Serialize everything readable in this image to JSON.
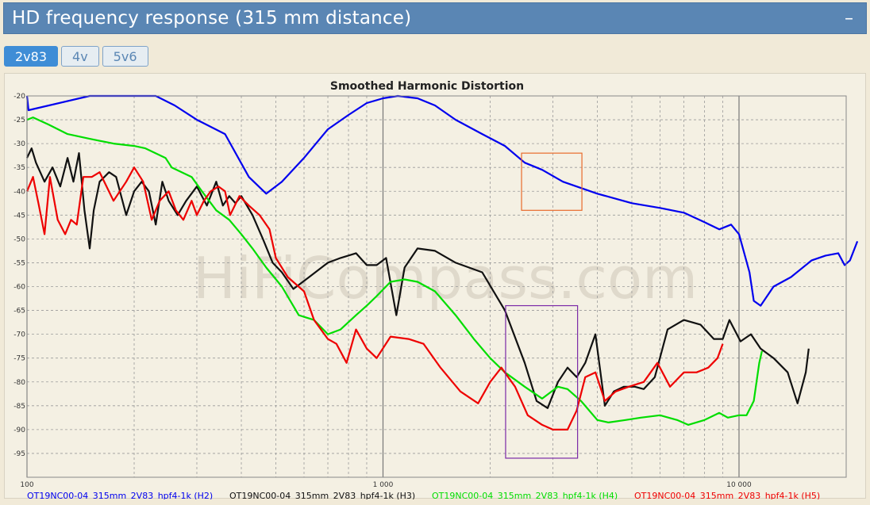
{
  "header": {
    "title": "HD frequency response (315 mm distance)",
    "collapse_symbol": "–"
  },
  "tabs": [
    {
      "label": "2v83",
      "active": true
    },
    {
      "label": "4v",
      "active": false
    },
    {
      "label": "5v6",
      "active": false
    }
  ],
  "chart_data": {
    "type": "line",
    "title": "Smoothed Harmonic Distortion",
    "watermark": "HiFiCompass.com",
    "x_scale": "log",
    "xlim": [
      100,
      20000
    ],
    "ylim": [
      -100,
      -20
    ],
    "x_ticks": [
      {
        "value": 100,
        "label": "100"
      },
      {
        "value": 1000,
        "label": "1 000"
      },
      {
        "value": 10000,
        "label": "10 000"
      }
    ],
    "y_ticks": [
      -20,
      -25,
      -30,
      -35,
      -40,
      -45,
      -50,
      -55,
      -60,
      -65,
      -70,
      -75,
      -80,
      -85,
      -90,
      -95
    ],
    "grid": true,
    "legend_position": "bottom",
    "series": [
      {
        "name": "OT19NC00-04_315mm_2V83_hpf4-1k (H2)",
        "color": "#0000ee",
        "points": [
          [
            100,
            -20
          ],
          [
            101,
            -23
          ],
          [
            150,
            -20
          ],
          [
            230,
            -20
          ],
          [
            260,
            -22
          ],
          [
            300,
            -25
          ],
          [
            360,
            -28
          ],
          [
            420,
            -37
          ],
          [
            470,
            -40.5
          ],
          [
            520,
            -38
          ],
          [
            600,
            -33
          ],
          [
            700,
            -27
          ],
          [
            800,
            -24
          ],
          [
            900,
            -21.5
          ],
          [
            1000,
            -20.5
          ],
          [
            1100,
            -20
          ],
          [
            1250,
            -20.5
          ],
          [
            1400,
            -22
          ],
          [
            1600,
            -25
          ],
          [
            1900,
            -28
          ],
          [
            2200,
            -30.5
          ],
          [
            2500,
            -34
          ],
          [
            2800,
            -35.5
          ],
          [
            3200,
            -38
          ],
          [
            4000,
            -40.5
          ],
          [
            5000,
            -42.5
          ],
          [
            6000,
            -43.5
          ],
          [
            7000,
            -44.5
          ],
          [
            8000,
            -46.5
          ],
          [
            8800,
            -48
          ],
          [
            9500,
            -47
          ],
          [
            10000,
            -49
          ],
          [
            10700,
            -57
          ],
          [
            11000,
            -63
          ],
          [
            11500,
            -64
          ],
          [
            12500,
            -60
          ],
          [
            14000,
            -58
          ],
          [
            16000,
            -54.5
          ],
          [
            17500,
            -53.5
          ],
          [
            19000,
            -53
          ],
          [
            19800,
            -55.5
          ],
          [
            20500,
            -54.5
          ],
          [
            21500,
            -50.5
          ]
        ]
      },
      {
        "name": "OT19NC00-04_315mm_2V83_hpf4-1k (H3)",
        "color": "#111111",
        "points": [
          [
            100,
            -33
          ],
          [
            103,
            -31
          ],
          [
            106,
            -34
          ],
          [
            112,
            -38
          ],
          [
            118,
            -35
          ],
          [
            124,
            -39
          ],
          [
            130,
            -33
          ],
          [
            135,
            -38
          ],
          [
            140,
            -32
          ],
          [
            145,
            -44
          ],
          [
            150,
            -52
          ],
          [
            154,
            -44
          ],
          [
            160,
            -38
          ],
          [
            170,
            -36
          ],
          [
            178,
            -37
          ],
          [
            190,
            -45
          ],
          [
            200,
            -40
          ],
          [
            210,
            -38
          ],
          [
            220,
            -40
          ],
          [
            230,
            -47
          ],
          [
            240,
            -38
          ],
          [
            250,
            -42
          ],
          [
            265,
            -45
          ],
          [
            280,
            -42
          ],
          [
            300,
            -39
          ],
          [
            320,
            -43
          ],
          [
            340,
            -38
          ],
          [
            355,
            -43
          ],
          [
            370,
            -41
          ],
          [
            385,
            -42.5
          ],
          [
            400,
            -41
          ],
          [
            430,
            -45
          ],
          [
            460,
            -50
          ],
          [
            490,
            -55
          ],
          [
            520,
            -57
          ],
          [
            560,
            -60.5
          ],
          [
            620,
            -58
          ],
          [
            700,
            -55
          ],
          [
            760,
            -54
          ],
          [
            840,
            -53
          ],
          [
            900,
            -55.5
          ],
          [
            960,
            -55.5
          ],
          [
            1020,
            -54
          ],
          [
            1090,
            -66
          ],
          [
            1150,
            -56
          ],
          [
            1250,
            -52
          ],
          [
            1400,
            -52.5
          ],
          [
            1600,
            -55
          ],
          [
            1900,
            -57
          ],
          [
            2200,
            -65
          ],
          [
            2500,
            -76
          ],
          [
            2700,
            -84
          ],
          [
            2900,
            -85.5
          ],
          [
            3100,
            -80
          ],
          [
            3300,
            -77
          ],
          [
            3500,
            -79
          ],
          [
            3700,
            -76
          ],
          [
            3950,
            -70
          ],
          [
            4200,
            -85
          ],
          [
            4450,
            -82
          ],
          [
            4750,
            -81
          ],
          [
            5100,
            -81
          ],
          [
            5400,
            -81.5
          ],
          [
            5800,
            -79
          ],
          [
            6300,
            -69
          ],
          [
            7000,
            -67
          ],
          [
            7800,
            -68
          ],
          [
            8500,
            -71
          ],
          [
            9000,
            -71
          ],
          [
            9400,
            -67
          ],
          [
            10100,
            -71.5
          ],
          [
            10800,
            -70
          ],
          [
            11500,
            -73
          ],
          [
            12500,
            -75
          ],
          [
            13700,
            -78
          ],
          [
            14600,
            -84.5
          ],
          [
            15400,
            -78
          ],
          [
            15700,
            -73
          ]
        ]
      },
      {
        "name": "OT19NC00-04_315mm_2V83_hpf4-1k (H4)",
        "color": "#00dd00",
        "points": [
          [
            100,
            -25
          ],
          [
            104,
            -24.5
          ],
          [
            115,
            -26
          ],
          [
            130,
            -28
          ],
          [
            150,
            -29
          ],
          [
            175,
            -30
          ],
          [
            200,
            -30.5
          ],
          [
            215,
            -31
          ],
          [
            245,
            -33
          ],
          [
            255,
            -35
          ],
          [
            290,
            -37
          ],
          [
            310,
            -40
          ],
          [
            340,
            -44
          ],
          [
            370,
            -46
          ],
          [
            400,
            -49
          ],
          [
            430,
            -52
          ],
          [
            470,
            -56
          ],
          [
            520,
            -60
          ],
          [
            580,
            -66
          ],
          [
            640,
            -67
          ],
          [
            700,
            -70
          ],
          [
            760,
            -69
          ],
          [
            840,
            -66
          ],
          [
            900,
            -64
          ],
          [
            960,
            -62
          ],
          [
            1050,
            -59
          ],
          [
            1150,
            -58.5
          ],
          [
            1250,
            -59
          ],
          [
            1400,
            -61
          ],
          [
            1600,
            -66
          ],
          [
            1800,
            -71
          ],
          [
            2000,
            -75
          ],
          [
            2200,
            -78
          ],
          [
            2500,
            -81
          ],
          [
            2800,
            -83.5
          ],
          [
            3100,
            -81
          ],
          [
            3300,
            -81.5
          ],
          [
            3600,
            -84
          ],
          [
            4000,
            -88
          ],
          [
            4300,
            -88.5
          ],
          [
            4800,
            -88
          ],
          [
            5300,
            -87.5
          ],
          [
            6000,
            -87
          ],
          [
            6700,
            -88
          ],
          [
            7200,
            -89
          ],
          [
            8000,
            -88
          ],
          [
            8800,
            -86.5
          ],
          [
            9300,
            -87.5
          ],
          [
            10000,
            -87
          ],
          [
            10500,
            -87
          ],
          [
            11000,
            -84
          ],
          [
            11400,
            -76
          ],
          [
            11600,
            -73.5
          ]
        ]
      },
      {
        "name": "OT19NC00-04_315mm_2V83_hpf4-1k (H5)",
        "color": "#ee0000",
        "points": [
          [
            100,
            -40
          ],
          [
            104,
            -37
          ],
          [
            108,
            -43
          ],
          [
            112,
            -49
          ],
          [
            116,
            -37
          ],
          [
            122,
            -46
          ],
          [
            128,
            -49
          ],
          [
            133,
            -46
          ],
          [
            138,
            -47
          ],
          [
            144,
            -37
          ],
          [
            152,
            -37
          ],
          [
            160,
            -36
          ],
          [
            175,
            -42
          ],
          [
            190,
            -38
          ],
          [
            200,
            -35
          ],
          [
            212,
            -38
          ],
          [
            224,
            -46
          ],
          [
            236,
            -42
          ],
          [
            250,
            -40
          ],
          [
            262,
            -44
          ],
          [
            275,
            -46
          ],
          [
            290,
            -42
          ],
          [
            300,
            -45
          ],
          [
            314,
            -42
          ],
          [
            328,
            -40
          ],
          [
            345,
            -39
          ],
          [
            360,
            -40
          ],
          [
            372,
            -45
          ],
          [
            395,
            -41
          ],
          [
            420,
            -43
          ],
          [
            450,
            -45
          ],
          [
            480,
            -48
          ],
          [
            500,
            -54
          ],
          [
            540,
            -58
          ],
          [
            600,
            -61
          ],
          [
            640,
            -67
          ],
          [
            700,
            -71
          ],
          [
            740,
            -72
          ],
          [
            790,
            -76
          ],
          [
            840,
            -69
          ],
          [
            900,
            -73
          ],
          [
            960,
            -75
          ],
          [
            1050,
            -70.5
          ],
          [
            1180,
            -71
          ],
          [
            1300,
            -72
          ],
          [
            1450,
            -77
          ],
          [
            1650,
            -82
          ],
          [
            1850,
            -84.5
          ],
          [
            2000,
            -80
          ],
          [
            2150,
            -77
          ],
          [
            2350,
            -81
          ],
          [
            2550,
            -87
          ],
          [
            2800,
            -89
          ],
          [
            3000,
            -90
          ],
          [
            3300,
            -90
          ],
          [
            3500,
            -86
          ],
          [
            3700,
            -79
          ],
          [
            3950,
            -78
          ],
          [
            4200,
            -84
          ],
          [
            4500,
            -82
          ],
          [
            4900,
            -81
          ],
          [
            5400,
            -80
          ],
          [
            5900,
            -76
          ],
          [
            6400,
            -81
          ],
          [
            7000,
            -78
          ],
          [
            7600,
            -78
          ],
          [
            8200,
            -77
          ],
          [
            8700,
            -75
          ],
          [
            9000,
            -72
          ]
        ]
      }
    ],
    "annotations": [
      {
        "type": "box",
        "color": "#e86a2a",
        "x": [
          2450,
          3620
        ],
        "y": [
          -32,
          -44
        ]
      },
      {
        "type": "box",
        "color": "#7b2aa8",
        "x": [
          2210,
          3520
        ],
        "y": [
          -64,
          -96
        ]
      }
    ]
  }
}
